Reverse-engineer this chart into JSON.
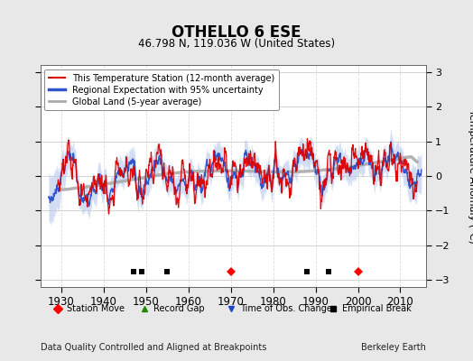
{
  "title": "OTHELLO 6 ESE",
  "subtitle": "46.798 N, 119.036 W (United States)",
  "ylabel": "Temperature Anomaly (°C)",
  "xlabel_bottom": "Data Quality Controlled and Aligned at Breakpoints",
  "xlabel_right": "Berkeley Earth",
  "ylim": [
    -3.2,
    3.2
  ],
  "xlim": [
    1925,
    2016
  ],
  "yticks": [
    -3,
    -2,
    -1,
    0,
    1,
    2,
    3
  ],
  "xticks": [
    1930,
    1940,
    1950,
    1960,
    1970,
    1980,
    1990,
    2000,
    2010
  ],
  "station_moves": [
    1970,
    2000
  ],
  "record_gaps": [],
  "obs_changes": [],
  "emp_breaks": [
    1947,
    1949,
    1955,
    1988,
    1993
  ],
  "bg_color": "#e8e8e8",
  "plot_bg_color": "#ffffff",
  "grid_color": "#cccccc",
  "legend_region_color": "#7799dd",
  "legend_region_fill": "#aabbee",
  "station_color": "#dd0000",
  "regional_color": "#3355cc",
  "global_color": "#aaaaaa",
  "seed": 12345
}
